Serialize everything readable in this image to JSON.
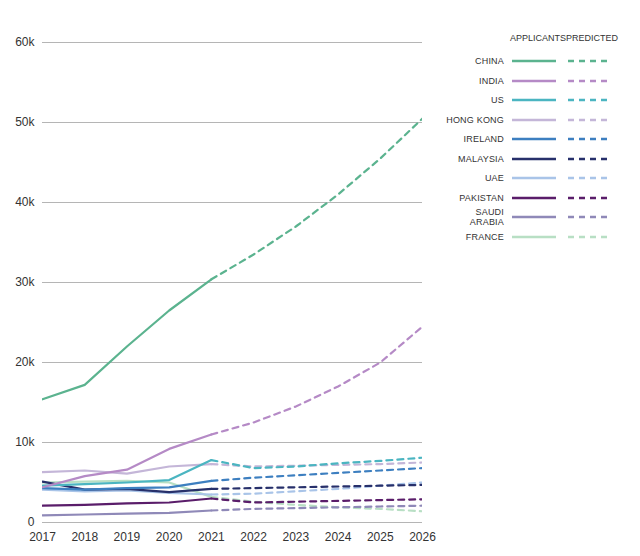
{
  "chart_data": {
    "type": "line",
    "x": [
      2017,
      2018,
      2019,
      2020,
      2021,
      2022,
      2023,
      2024,
      2025,
      2026
    ],
    "xlim": [
      2017,
      2026
    ],
    "xticks": [
      2017,
      2018,
      2019,
      2020,
      2021,
      2022,
      2023,
      2024,
      2025,
      2026
    ],
    "ylim": [
      0,
      60000
    ],
    "yticks": [
      {
        "value": 0,
        "label": "0"
      },
      {
        "value": 10000,
        "label": "10k"
      },
      {
        "value": 20000,
        "label": "20k"
      },
      {
        "value": 30000,
        "label": "30k"
      },
      {
        "value": 40000,
        "label": "40k"
      },
      {
        "value": 50000,
        "label": "50k"
      },
      {
        "value": 60000,
        "label": "60k"
      }
    ],
    "grid": true,
    "legend": "right",
    "legend_titles": [
      "APPLICANTS",
      "PREDICTED"
    ],
    "series": [
      {
        "name": "CHINA",
        "color": "#5bb38f",
        "values": [
          15400,
          17200,
          22000,
          26500,
          30400,
          null,
          null,
          null,
          null,
          null
        ],
        "predicted": [
          null,
          null,
          null,
          null,
          30400,
          33500,
          37000,
          41000,
          45500,
          50500
        ]
      },
      {
        "name": "INDIA",
        "color": "#b58ac6",
        "values": [
          4400,
          5800,
          6600,
          9200,
          11000,
          null,
          null,
          null,
          null,
          null
        ],
        "predicted": [
          null,
          null,
          null,
          null,
          11000,
          12500,
          14500,
          17000,
          20000,
          24500
        ]
      },
      {
        "name": "US",
        "color": "#4bb5c1",
        "values": [
          4600,
          4800,
          5000,
          5300,
          7800,
          null,
          null,
          null,
          null,
          null
        ],
        "predicted": [
          null,
          null,
          null,
          null,
          7800,
          6800,
          7000,
          7400,
          7700,
          8100
        ]
      },
      {
        "name": "HONG KONG",
        "color": "#c4b6d8",
        "values": [
          6300,
          6500,
          6100,
          7000,
          7300,
          null,
          null,
          null,
          null,
          null
        ],
        "predicted": [
          null,
          null,
          null,
          null,
          7300,
          7000,
          7100,
          7200,
          7300,
          7500
        ]
      },
      {
        "name": "IRELAND",
        "color": "#3d7fc0",
        "values": [
          4300,
          4100,
          4300,
          4400,
          5200,
          null,
          null,
          null,
          null,
          null
        ],
        "predicted": [
          null,
          null,
          null,
          null,
          5200,
          5600,
          5900,
          6200,
          6500,
          6800
        ]
      },
      {
        "name": "MALAYSIA",
        "color": "#27306b",
        "values": [
          5100,
          4100,
          4200,
          3800,
          4200,
          null,
          null,
          null,
          null,
          null
        ],
        "predicted": [
          null,
          null,
          null,
          null,
          4200,
          4300,
          4400,
          4500,
          4600,
          4700
        ]
      },
      {
        "name": "UAE",
        "color": "#a9c4e8",
        "values": [
          4100,
          3900,
          4000,
          3700,
          3500,
          null,
          null,
          null,
          null,
          null
        ],
        "predicted": [
          null,
          null,
          null,
          null,
          3500,
          3600,
          3900,
          4200,
          4600,
          5000
        ]
      },
      {
        "name": "PAKISTAN",
        "color": "#5a1d6a",
        "values": [
          2100,
          2200,
          2400,
          2500,
          3000,
          null,
          null,
          null,
          null,
          null
        ],
        "predicted": [
          null,
          null,
          null,
          null,
          3000,
          2500,
          2600,
          2700,
          2800,
          2900
        ]
      },
      {
        "name": "SAUDI ARABIA",
        "color": "#8f89b8",
        "values": [
          900,
          1000,
          1100,
          1200,
          1500,
          null,
          null,
          null,
          null,
          null
        ],
        "predicted": [
          null,
          null,
          null,
          null,
          1500,
          1700,
          1800,
          1900,
          2000,
          2100
        ]
      },
      {
        "name": "FRANCE",
        "color": "#b8dfc4",
        "values": [
          5000,
          5100,
          5200,
          5000,
          3200,
          null,
          null,
          null,
          null,
          null
        ],
        "predicted": [
          null,
          null,
          null,
          null,
          3200,
          2600,
          2200,
          1900,
          1700,
          1400
        ]
      }
    ]
  }
}
